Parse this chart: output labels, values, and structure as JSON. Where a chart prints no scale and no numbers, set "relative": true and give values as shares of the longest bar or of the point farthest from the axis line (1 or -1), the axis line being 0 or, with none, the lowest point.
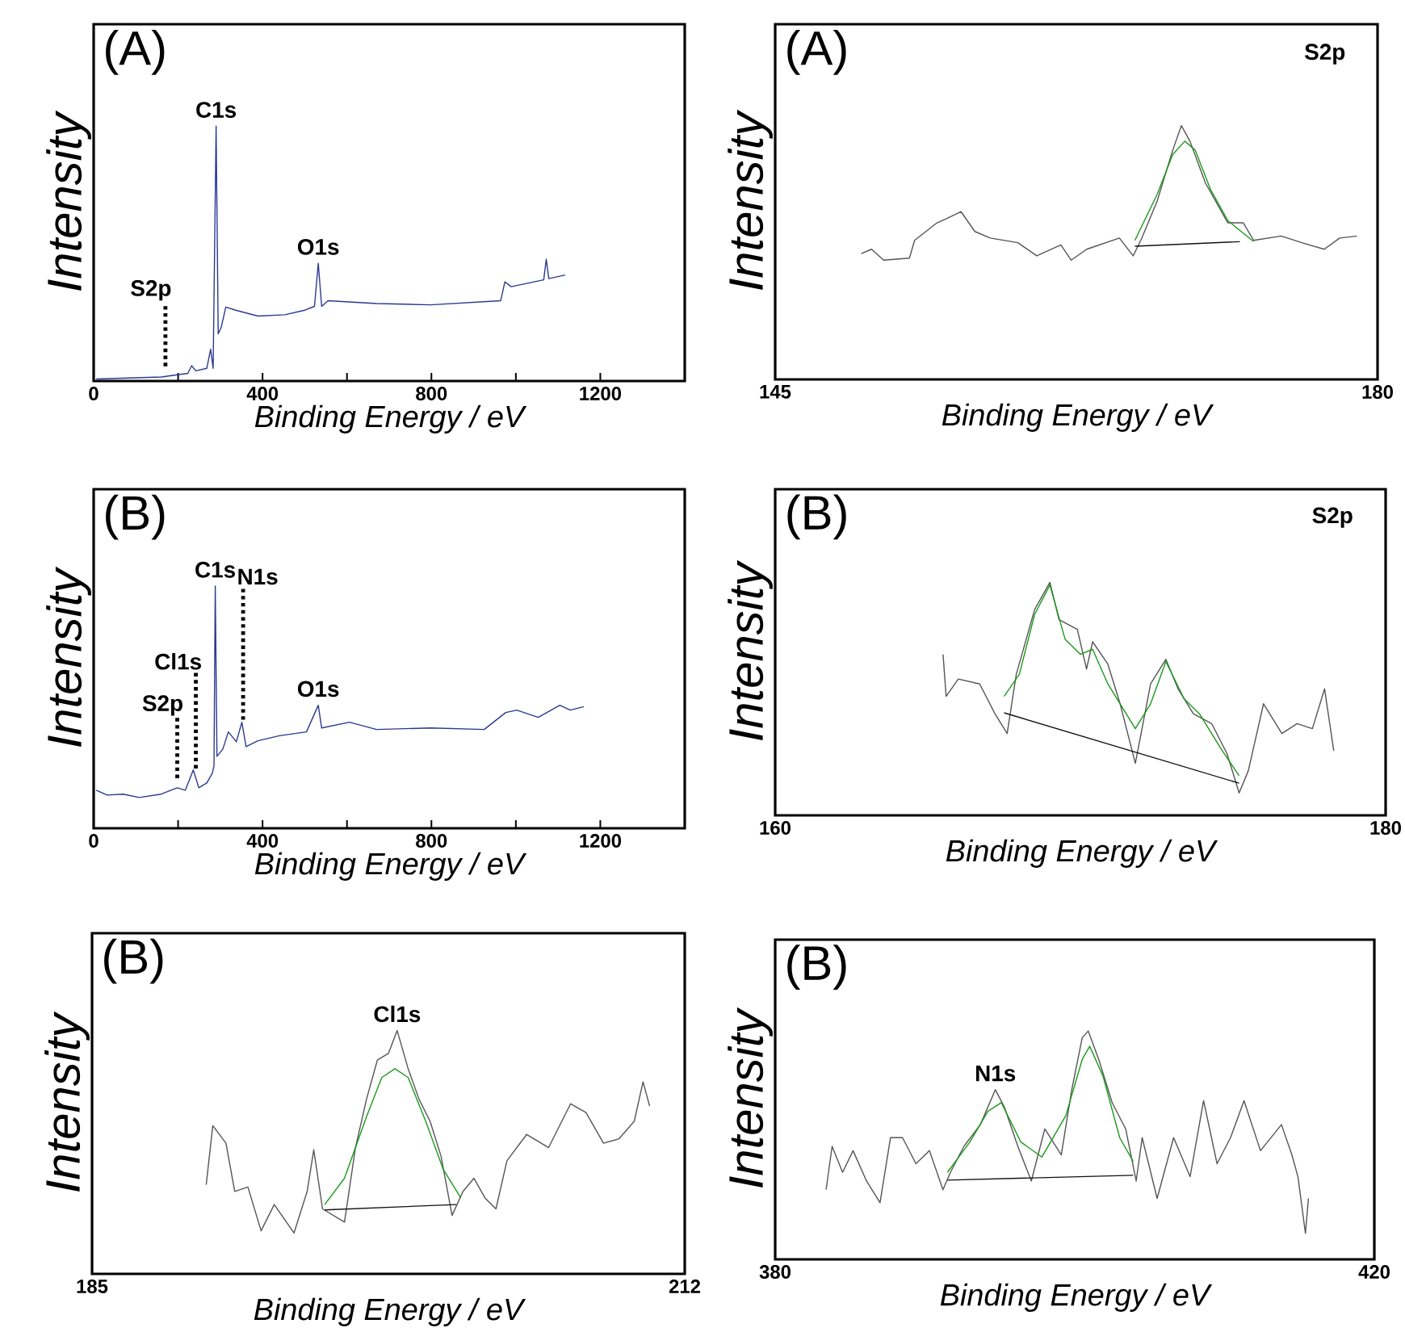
{
  "chart_data": [
    {
      "type": "line",
      "title": "(A)",
      "xlabel": "Binding Energy / eV",
      "ylabel": "Intensity",
      "relative": true,
      "tick_labels": "x",
      "xlim": [
        0,
        1400
      ],
      "xticks": [
        0,
        {
          "value": 200,
          "label": null
        },
        400,
        {
          "value": 600,
          "label": null
        },
        800,
        {
          "value": 1000,
          "label": null
        },
        1200
      ],
      "series": [
        {
          "color": "#2b3990",
          "x": [
            6,
            160,
            223,
            232,
            242,
            268,
            277,
            283,
            290,
            295,
            302,
            313,
            338,
            389,
            453,
            498,
            523,
            532,
            540,
            555,
            670,
            798,
            964,
            974,
            989,
            1066,
            1072,
            1078,
            1117
          ],
          "values": [
            0.008,
            0.016,
            0.03,
            0.06,
            0.04,
            0.05,
            0.125,
            0.05,
            1.0,
            0.185,
            0.21,
            0.29,
            0.277,
            0.255,
            0.26,
            0.277,
            0.293,
            0.462,
            0.293,
            0.315,
            0.304,
            0.299,
            0.315,
            0.389,
            0.37,
            0.397,
            0.478,
            0.402,
            0.416
          ]
        }
      ],
      "annotations": [
        {
          "text": "C1s",
          "x": 290,
          "y": 1.0
        },
        {
          "text": "O1s",
          "x": 532,
          "y": 0.462
        }
      ],
      "ref_lines": [
        {
          "axis": "x",
          "value": 170,
          "label": "S2p",
          "line_style": "dotted"
        }
      ]
    },
    {
      "type": "line",
      "title": "(A)",
      "xlabel": "Binding Energy / eV",
      "ylabel": "Intensity",
      "relative": true,
      "tick_labels": "x",
      "xlim": [
        145,
        180
      ],
      "xticks": [
        145,
        180
      ],
      "series": [
        {
          "color": "#555555",
          "x": [
            150.0,
            150.6,
            151.3,
            152.8,
            153.1,
            154.4,
            155.0,
            155.8,
            156.6,
            157.5,
            159.1,
            160.2,
            161.6,
            162.2,
            163.1,
            165.0,
            165.8,
            166.3,
            167.2,
            168.1,
            168.6,
            169.1,
            170.0,
            171.3,
            172.2,
            172.8,
            174.4,
            175.6,
            176.9,
            177.8,
            178.8
          ],
          "values": [
            0.496,
            0.513,
            0.47,
            0.478,
            0.548,
            0.617,
            0.635,
            0.661,
            0.583,
            0.557,
            0.539,
            0.487,
            0.53,
            0.47,
            0.513,
            0.557,
            0.487,
            0.557,
            0.704,
            0.904,
            1.0,
            0.939,
            0.774,
            0.617,
            0.617,
            0.548,
            0.565,
            0.539,
            0.513,
            0.557,
            0.565
          ]
        },
        {
          "color": "#1a9a1a",
          "x": [
            165.9,
            167.2,
            168.1,
            168.8,
            169.4,
            170.3,
            171.3,
            172.8
          ],
          "values": [
            0.548,
            0.73,
            0.887,
            0.939,
            0.904,
            0.748,
            0.626,
            0.543
          ]
        },
        {
          "color": "#111111",
          "x": [
            165.9,
            172.0
          ],
          "values": [
            0.525,
            0.543
          ]
        }
      ],
      "annotations": [
        "S2p"
      ]
    },
    {
      "type": "line",
      "title": "(B)",
      "xlabel": "Binding Energy / eV",
      "ylabel": "Intensity",
      "relative": true,
      "tick_labels": "x",
      "xlim": [
        0,
        1400
      ],
      "xticks": [
        0,
        {
          "value": 200,
          "label": null
        },
        400,
        {
          "value": 600,
          "label": null
        },
        800,
        {
          "value": 1000,
          "label": null
        },
        1200
      ],
      "series": [
        {
          "color": "#2b3990",
          "x": [
            6,
            32,
            70,
            108,
            160,
            198,
            217,
            236,
            249,
            268,
            281,
            285,
            288,
            292,
            306,
            319,
            338,
            351,
            361,
            389,
            440,
            504,
            532,
            540,
            606,
            670,
            798,
            925,
            976,
            1002,
            1053,
            1104,
            1129,
            1161
          ],
          "values": [
            0.157,
            0.137,
            0.141,
            0.127,
            0.141,
            0.167,
            0.157,
            0.241,
            0.167,
            0.187,
            0.227,
            0.257,
            1.0,
            0.297,
            0.327,
            0.398,
            0.357,
            0.438,
            0.337,
            0.361,
            0.382,
            0.398,
            0.508,
            0.414,
            0.438,
            0.408,
            0.414,
            0.408,
            0.478,
            0.488,
            0.458,
            0.508,
            0.488,
            0.502
          ]
        }
      ],
      "annotations": [
        {
          "text": "C1s",
          "x": 288,
          "y": 1.0
        },
        {
          "text": "O1s",
          "x": 532,
          "y": 0.508
        }
      ],
      "ref_lines": [
        {
          "axis": "x",
          "value": 198,
          "label": "S2p",
          "line_style": "dotted"
        },
        {
          "axis": "x",
          "value": 242,
          "label": "Cl1s",
          "line_style": "dotted"
        },
        {
          "axis": "x",
          "value": 354,
          "label": "N1s",
          "line_style": "dotted"
        }
      ]
    },
    {
      "type": "line",
      "title": "(B)",
      "xlabel": "Binding Energy / eV",
      "ylabel": "Intensity",
      "relative": true,
      "tick_labels": "x",
      "xlim": [
        160,
        180
      ],
      "xticks": [
        160,
        180
      ],
      "series": [
        {
          "color": "#555555",
          "x": [
            165.5,
            165.6,
            166.0,
            166.7,
            167.2,
            167.6,
            167.9,
            168.5,
            169.0,
            169.3,
            169.9,
            170.2,
            170.4,
            170.9,
            171.3,
            171.8,
            172.3,
            172.8,
            173.2,
            173.7,
            174.3,
            174.8,
            175.2,
            175.5,
            176.0,
            176.6,
            177.1,
            177.6,
            178.0,
            178.3
          ],
          "values": [
            0.691,
            0.511,
            0.585,
            0.564,
            0.436,
            0.351,
            0.606,
            0.883,
            1.0,
            0.84,
            0.798,
            0.628,
            0.745,
            0.649,
            0.479,
            0.223,
            0.564,
            0.67,
            0.543,
            0.436,
            0.394,
            0.266,
            0.096,
            0.191,
            0.479,
            0.351,
            0.394,
            0.372,
            0.543,
            0.277
          ]
        },
        {
          "color": "#1a9a1a",
          "x": [
            167.5,
            168.0,
            168.5,
            169.0,
            169.5,
            170.0,
            170.4,
            170.9,
            171.8,
            172.3,
            172.8,
            173.4,
            173.9,
            174.6,
            175.2
          ],
          "values": [
            0.511,
            0.606,
            0.862,
            0.989,
            0.755,
            0.691,
            0.713,
            0.564,
            0.372,
            0.479,
            0.66,
            0.5,
            0.436,
            0.287,
            0.17
          ]
        },
        {
          "color": "#111111",
          "x": [
            167.5,
            175.2
          ],
          "values": [
            0.44,
            0.138
          ]
        }
      ],
      "annotations": [
        "S2p"
      ]
    },
    {
      "type": "line",
      "title": "(B)",
      "xlabel": "Binding Energy / eV",
      "ylabel": "Intensity",
      "relative": true,
      "tick_labels": "x",
      "xlim": [
        185,
        212
      ],
      "xticks": [
        185,
        212
      ],
      "series": [
        {
          "color": "#555555",
          "x": [
            190.2,
            190.5,
            191.1,
            191.5,
            192.1,
            192.7,
            193.3,
            194.2,
            194.8,
            195.1,
            195.5,
            196.5,
            197.0,
            197.5,
            198.0,
            198.5,
            198.9,
            199.4,
            199.9,
            200.4,
            200.9,
            201.4,
            201.9,
            202.4,
            202.9,
            203.4,
            203.9,
            204.8,
            205.8,
            206.8,
            207.5,
            208.3,
            209.0,
            209.7,
            210.1,
            210.4
          ],
          "values": [
            0.366,
            0.609,
            0.537,
            0.339,
            0.357,
            0.177,
            0.285,
            0.168,
            0.339,
            0.51,
            0.267,
            0.213,
            0.519,
            0.717,
            0.879,
            0.906,
            1.0,
            0.843,
            0.717,
            0.627,
            0.483,
            0.24,
            0.339,
            0.393,
            0.312,
            0.267,
            0.465,
            0.573,
            0.519,
            0.699,
            0.663,
            0.537,
            0.555,
            0.627,
            0.789,
            0.69
          ]
        },
        {
          "color": "#1a9a1a",
          "x": [
            195.6,
            196.5,
            197.5,
            198.2,
            198.8,
            199.4,
            200.2,
            201.0,
            201.8
          ],
          "values": [
            0.285,
            0.393,
            0.645,
            0.807,
            0.843,
            0.807,
            0.627,
            0.429,
            0.312
          ]
        },
        {
          "color": "#111111",
          "x": [
            195.6,
            201.6
          ],
          "values": [
            0.263,
            0.285
          ]
        }
      ],
      "annotations": [
        {
          "text": "Cl1s",
          "x": 198.9,
          "y": 1.0
        }
      ]
    },
    {
      "type": "line",
      "title": "(B)",
      "xlabel": "Binding Energy / eV",
      "ylabel": "Intensity",
      "relative": true,
      "tick_labels": "x",
      "xlim": [
        380,
        420
      ],
      "xticks": [
        380,
        420
      ],
      "series": [
        {
          "color": "#555555",
          "x": [
            383.4,
            383.8,
            384.5,
            385.2,
            386.1,
            387.0,
            387.7,
            388.5,
            389.4,
            390.3,
            391.2,
            391.7,
            392.6,
            393.7,
            394.7,
            395.3,
            396.2,
            397.1,
            398.0,
            399.1,
            399.8,
            400.5,
            400.9,
            401.6,
            402.5,
            403.4,
            404.1,
            404.5,
            405.5,
            406.6,
            407.7,
            408.6,
            409.5,
            410.4,
            411.3,
            412.4,
            413.8,
            414.5,
            414.9,
            415.4,
            415.6
          ],
          "values": [
            0.305,
            0.495,
            0.381,
            0.476,
            0.343,
            0.248,
            0.533,
            0.533,
            0.419,
            0.476,
            0.305,
            0.381,
            0.495,
            0.59,
            0.743,
            0.667,
            0.495,
            0.343,
            0.571,
            0.457,
            0.743,
            0.971,
            1.0,
            0.876,
            0.686,
            0.571,
            0.343,
            0.533,
            0.267,
            0.533,
            0.362,
            0.695,
            0.419,
            0.533,
            0.695,
            0.476,
            0.59,
            0.457,
            0.362,
            0.114,
            0.267
          ]
        },
        {
          "color": "#1a9a1a",
          "x": [
            391.5,
            393.0,
            394.2,
            395.1,
            396.4,
            397.8,
            399.4,
            400.5,
            401.0,
            401.9,
            403.0,
            403.9
          ],
          "values": [
            0.381,
            0.514,
            0.648,
            0.686,
            0.514,
            0.448,
            0.629,
            0.876,
            0.933,
            0.8,
            0.533,
            0.429
          ]
        },
        {
          "color": "#111111",
          "x": [
            391.5,
            403.9
          ],
          "values": [
            0.347,
            0.368
          ]
        }
      ],
      "annotations": [
        {
          "text": "N1s",
          "x": 394.7,
          "y": 0.743
        }
      ]
    }
  ]
}
